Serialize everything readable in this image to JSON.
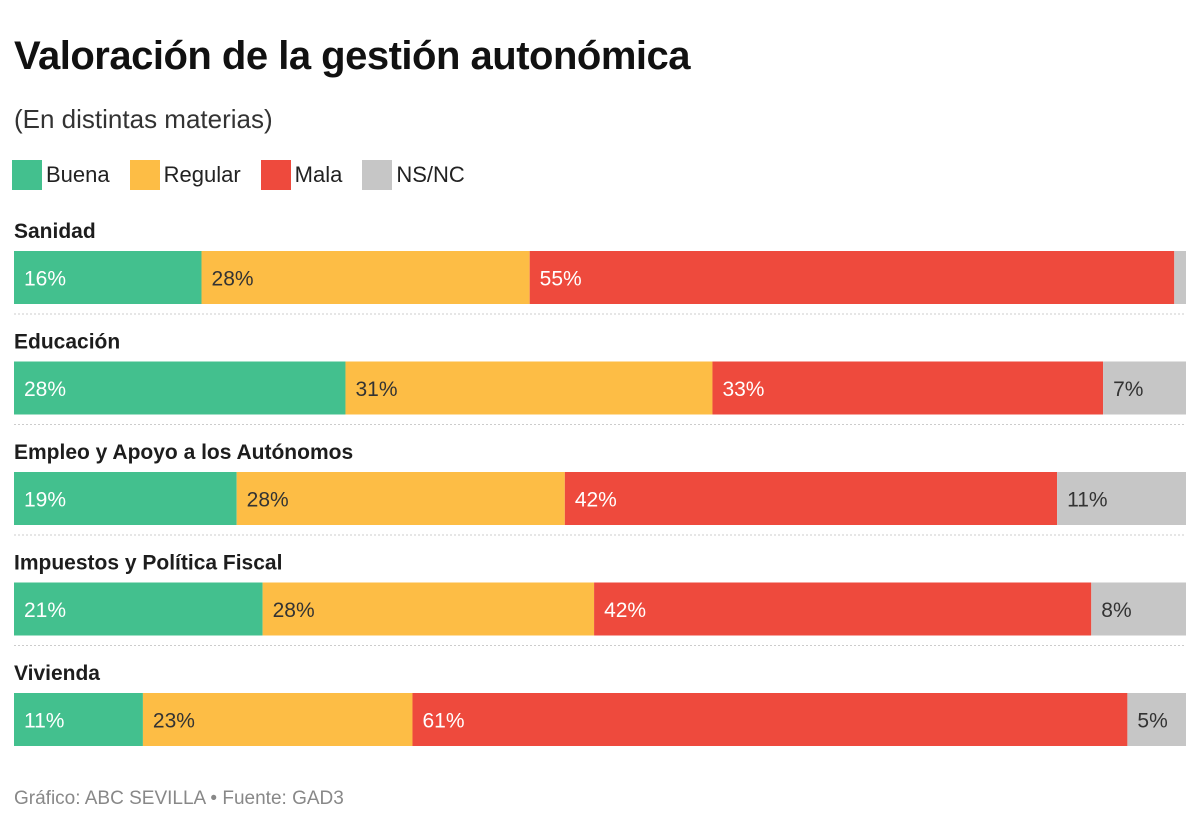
{
  "chart_data": {
    "type": "bar",
    "orientation": "horizontal-stacked-100",
    "title": "Valoración de la gestión autonómica",
    "subtitle": "(En distintas materias)",
    "source": "Gráfico: ABC SEVILLA • Fuente: GAD3",
    "series": [
      {
        "name": "Buena",
        "color": "#43c08e",
        "text_color": "#ffffff",
        "values": [
          16,
          28,
          19,
          21,
          11
        ]
      },
      {
        "name": "Regular",
        "color": "#fdbd45",
        "text_color": "#333333",
        "values": [
          28,
          31,
          28,
          28,
          23
        ]
      },
      {
        "name": "Mala",
        "color": "#ee4a3d",
        "text_color": "#ffffff",
        "values": [
          55,
          33,
          42,
          42,
          61
        ]
      },
      {
        "name": "NS/NC",
        "color": "#c6c6c6",
        "text_color": "#333333",
        "values": [
          1,
          7,
          11,
          8,
          5
        ]
      }
    ],
    "categories": [
      "Sanidad",
      "Educación",
      "Empleo y Apoyo a los Autónomos",
      "Impuestos y Política Fiscal",
      "Vivienda"
    ],
    "labels": [
      [
        "16%",
        "28%",
        "55%",
        ""
      ],
      [
        "28%",
        "31%",
        "33%",
        "7%"
      ],
      [
        "19%",
        "28%",
        "42%",
        "11%"
      ],
      [
        "21%",
        "28%",
        "42%",
        "8%"
      ],
      [
        "11%",
        "23%",
        "61%",
        "5%"
      ]
    ],
    "xlim": [
      0,
      100
    ]
  }
}
